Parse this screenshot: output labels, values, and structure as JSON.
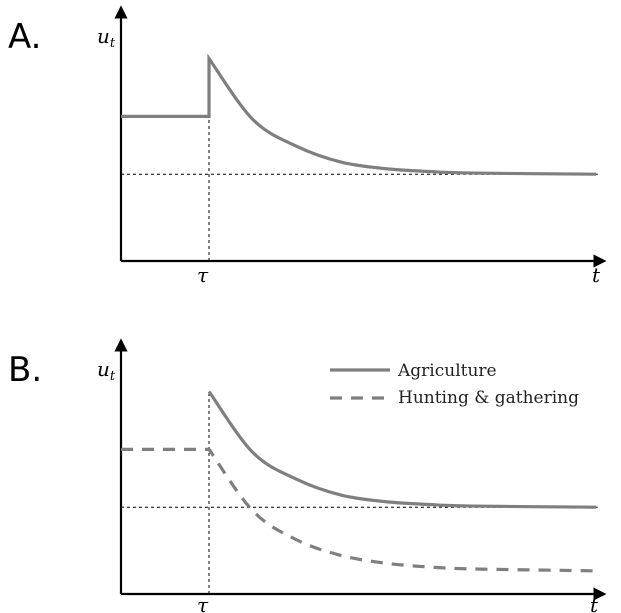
{
  "chart_data": [
    {
      "type": "line",
      "panel_label": "A.",
      "ylabel": "u",
      "ylabel_sub": "t",
      "xlabel": "t",
      "x_tick_labels": [
        "τ"
      ],
      "legend": "none",
      "grid": false,
      "reference_line": {
        "y": 0.45,
        "style": "dotted"
      },
      "series": [
        {
          "style": "solid",
          "color": "#7f7f7f",
          "x": [
            0.0,
            0.2,
            0.2,
            0.3,
            0.4,
            0.5,
            0.6,
            0.7,
            0.8,
            1.08
          ],
          "y": [
            0.75,
            0.75,
            1.05,
            0.733,
            0.594,
            0.513,
            0.479,
            0.464,
            0.456,
            0.45
          ]
        }
      ],
      "xlim": [
        0,
        1.1
      ],
      "ylim": [
        0,
        1.12
      ]
    },
    {
      "type": "line",
      "panel_label": "B.",
      "ylabel": "u",
      "ylabel_sub": "t",
      "xlabel": "t",
      "x_tick_labels": [
        "τ"
      ],
      "legend": "top-right",
      "grid": false,
      "reference_line": {
        "y": 0.45,
        "style": "dotted"
      },
      "series": [
        {
          "name": "Agriculture",
          "style": "solid",
          "color": "#7f7f7f",
          "x": [
            0.2,
            0.3,
            0.4,
            0.5,
            0.6,
            0.7,
            0.8,
            1.08
          ],
          "y": [
            1.05,
            0.733,
            0.594,
            0.513,
            0.479,
            0.464,
            0.456,
            0.45
          ]
        },
        {
          "name": "Hunting & gathering",
          "style": "dashed",
          "color": "#7f7f7f",
          "x": [
            0.0,
            0.2,
            0.2,
            0.3,
            0.4,
            0.5,
            0.6,
            0.7,
            0.8,
            1.08
          ],
          "y": [
            0.75,
            0.75,
            0.75,
            0.43,
            0.28,
            0.2,
            0.16,
            0.14,
            0.13,
            0.12
          ]
        }
      ],
      "xlim": [
        0,
        1.1
      ],
      "ylim": [
        0,
        1.12
      ]
    }
  ]
}
